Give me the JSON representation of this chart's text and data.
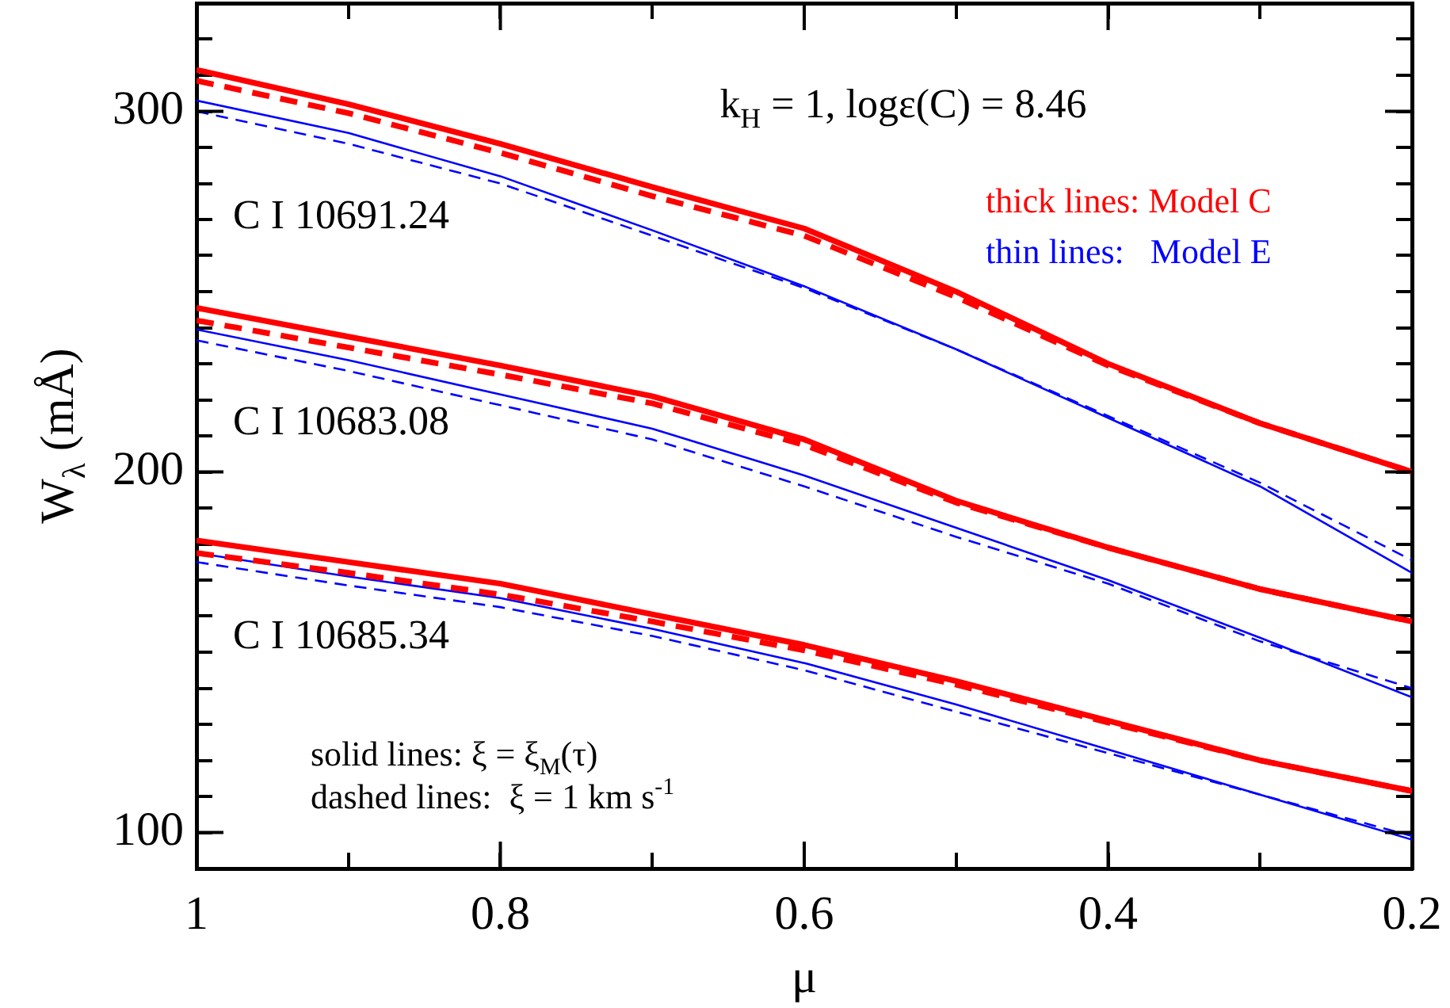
{
  "chart_data": {
    "type": "line",
    "xlabel": "μ",
    "ylabel": "W$_{λ}$ (mÅ)",
    "x": [
      1,
      0.9,
      0.8,
      0.7,
      0.6,
      0.5,
      0.4,
      0.3,
      0.2
    ],
    "xlim": [
      1,
      0.2
    ],
    "ylim": [
      90,
      330
    ],
    "xticks": [
      1,
      {
        "value": 0.9,
        "label": null
      },
      0.8,
      {
        "value": 0.7,
        "label": null
      },
      0.6,
      {
        "value": 0.5,
        "label": null
      },
      0.4,
      {
        "value": 0.3,
        "label": null
      },
      0.2
    ],
    "yticks": [
      100,
      {
        "value": 110,
        "label": null
      },
      {
        "value": 120,
        "label": null
      },
      {
        "value": 130,
        "label": null
      },
      {
        "value": 140,
        "label": null
      },
      {
        "value": 150,
        "label": null
      },
      {
        "value": 160,
        "label": null
      },
      {
        "value": 170,
        "label": null
      },
      {
        "value": 180,
        "label": null
      },
      {
        "value": 190,
        "label": null
      },
      200,
      {
        "value": 210,
        "label": null
      },
      {
        "value": 220,
        "label": null
      },
      {
        "value": 230,
        "label": null
      },
      {
        "value": 240,
        "label": null
      },
      {
        "value": 250,
        "label": null
      },
      {
        "value": 260,
        "label": null
      },
      {
        "value": 270,
        "label": null
      },
      {
        "value": 280,
        "label": null
      },
      {
        "value": 290,
        "label": null
      },
      300,
      {
        "value": 310,
        "label": null
      },
      {
        "value": 320,
        "label": null
      }
    ],
    "series": [
      {
        "color": "#ff0000",
        "line_style": "solid",
        "values": [
          311.5,
          302,
          291,
          279,
          267.5,
          250,
          230,
          213.5,
          200
        ]
      },
      {
        "color": "#ff0000",
        "line_style": "dashed",
        "values": [
          308.5,
          299.5,
          288.5,
          276.5,
          265.5,
          248.5,
          229.5,
          213.5,
          200
        ]
      },
      {
        "color": "#0000ff",
        "line_style": "solid",
        "values": [
          303,
          294,
          282,
          267,
          251.5,
          234,
          215,
          196,
          172
        ]
      },
      {
        "color": "#0000ff",
        "line_style": "dashed",
        "values": [
          300,
          291,
          280,
          265.5,
          251,
          234,
          215.5,
          197,
          175.5
        ]
      },
      {
        "color": "#ff0000",
        "line_style": "solid",
        "values": [
          245.5,
          237.5,
          229.5,
          221,
          209,
          192,
          179,
          167.5,
          158.5
        ]
      },
      {
        "color": "#ff0000",
        "line_style": "dashed",
        "values": [
          242,
          234.5,
          227,
          219,
          207.5,
          191.5,
          179,
          167.5,
          158.5
        ]
      },
      {
        "color": "#0000ff",
        "line_style": "solid",
        "values": [
          239.5,
          231,
          221.5,
          212,
          199,
          184.5,
          170,
          154,
          137.5
        ]
      },
      {
        "color": "#0000ff",
        "line_style": "dashed",
        "values": [
          236.5,
          228,
          218.5,
          209,
          196,
          182,
          169,
          153,
          140
        ]
      },
      {
        "color": "#ff0000",
        "line_style": "solid",
        "values": [
          181,
          175,
          169,
          160.5,
          152,
          142,
          131,
          120,
          111.5
        ]
      },
      {
        "color": "#ff0000",
        "line_style": "dashed",
        "values": [
          177.5,
          172,
          166,
          158.5,
          150.5,
          141,
          130.5,
          120,
          111.5
        ]
      },
      {
        "color": "#0000ff",
        "line_style": "solid",
        "values": [
          177.5,
          171,
          165,
          156.5,
          147,
          135.5,
          123,
          110.5,
          98
        ]
      },
      {
        "color": "#0000ff",
        "line_style": "dashed",
        "values": [
          175,
          168.5,
          162.5,
          154.5,
          145,
          133.5,
          122,
          110.5,
          99
        ]
      }
    ],
    "annotations": [
      "k$_{H}$ = 1, logε(C) = 8.46",
      "C I 10691.24",
      "thick lines: Model C",
      "thin lines:   Model E",
      "C I 10683.08",
      "C I 10685.34",
      "solid lines: ξ = ξ$_{M}$(τ)",
      "dashed lines:  ξ = 1 km s$^{-1}$"
    ]
  }
}
